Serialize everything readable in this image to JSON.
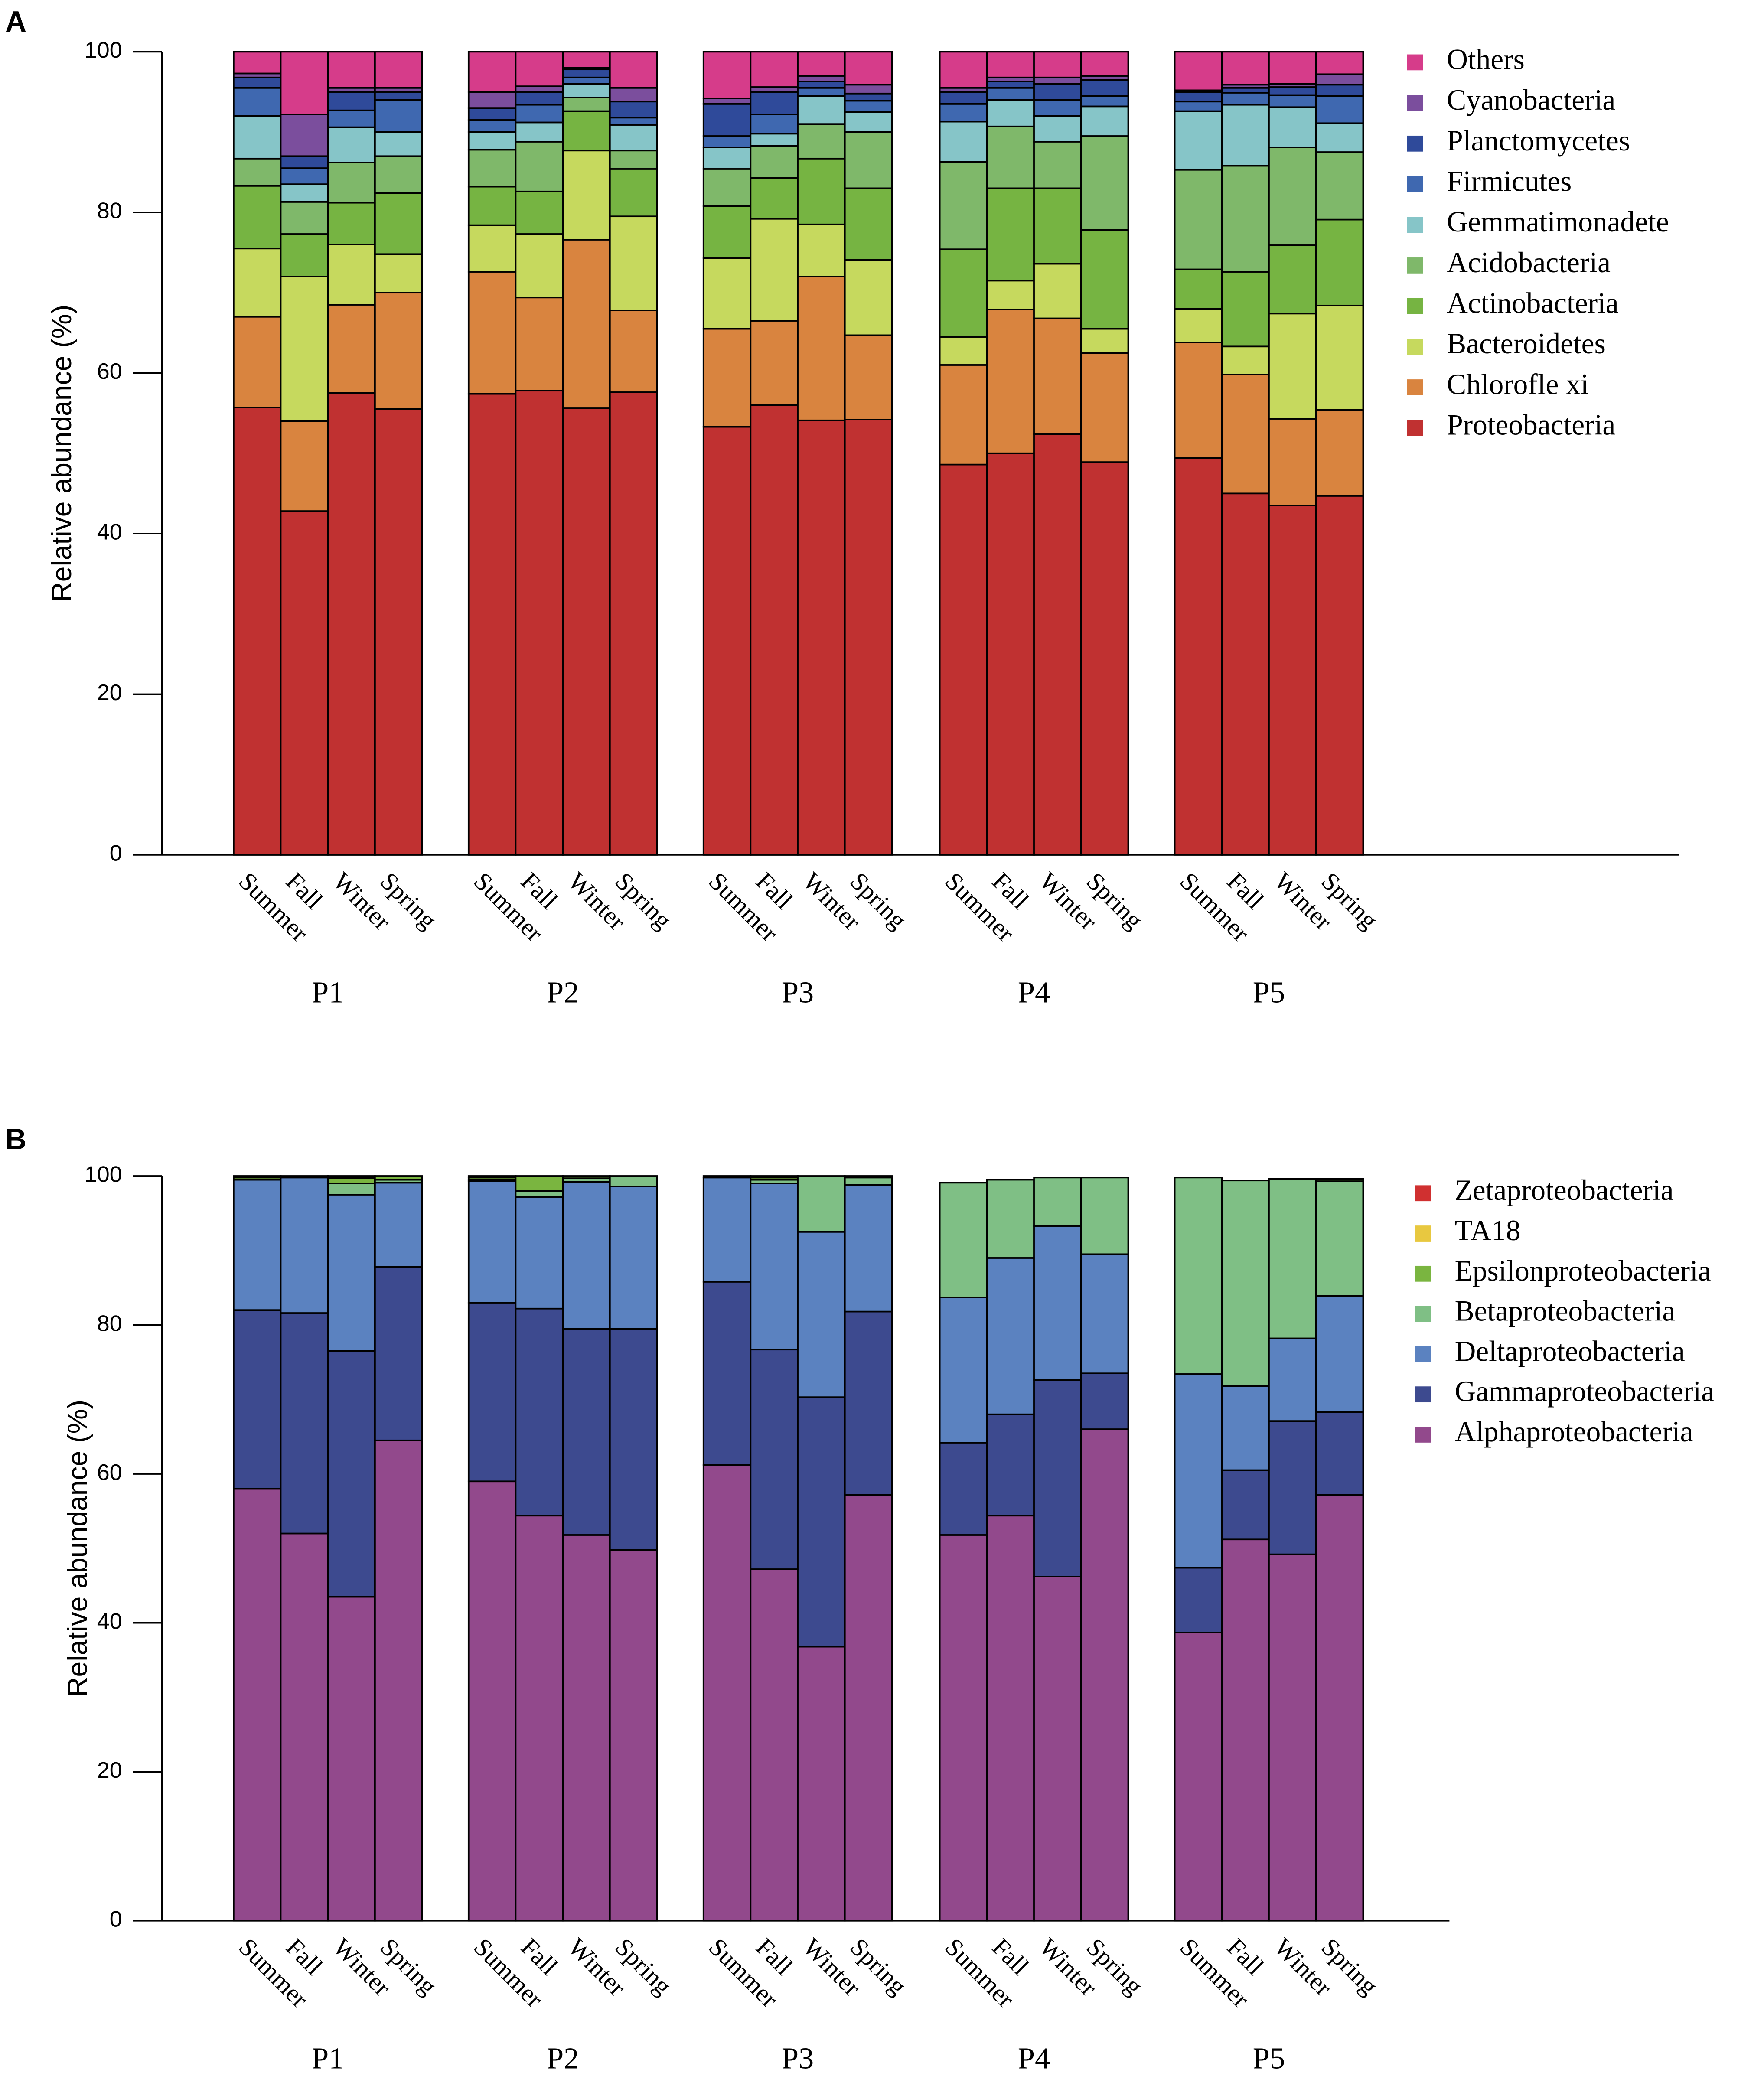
{
  "chart_data": [
    {
      "type": "bar",
      "stacked": true,
      "panel_label": "A",
      "ylabel": "Relative abundance (%)",
      "categories": [
        "Summer",
        "Fall",
        "Winter",
        "Spring",
        "Summer",
        "Fall",
        "Winter",
        "Spring",
        "Summer",
        "Fall",
        "Winter",
        "Spring",
        "Summer",
        "Fall",
        "Winter",
        "Spring",
        "Summer",
        "Fall",
        "Winter",
        "Spring"
      ],
      "groups": [
        "P1",
        "P2",
        "P3",
        "P4",
        "P5"
      ],
      "ylim": [
        0,
        100
      ],
      "yticks": [
        0,
        20,
        40,
        60,
        80,
        100
      ],
      "series": [
        {
          "name": "Proteobacteria",
          "color": "#c03131",
          "values": [
            55.7,
            42.8,
            57.5,
            55.5,
            57.4,
            57.8,
            55.6,
            57.6,
            53.3,
            56,
            54.1,
            54.2,
            48.6,
            50,
            52.4,
            48.9,
            49.4,
            45,
            43.5,
            44.7
          ]
        },
        {
          "name": "Chlorofle xi",
          "color": "#d9843f",
          "values": [
            11.3,
            11.2,
            11,
            14.5,
            15.2,
            11.6,
            21,
            10.2,
            12.2,
            10.5,
            17.9,
            10.5,
            12.4,
            17.9,
            14.4,
            13.6,
            14.4,
            14.8,
            10.8,
            10.7
          ]
        },
        {
          "name": "Bacteroidetes",
          "color": "#c6d95e",
          "values": [
            8.5,
            18,
            7.5,
            4.8,
            5.8,
            7.9,
            11.1,
            11.7,
            8.8,
            12.7,
            6.5,
            9.4,
            3.5,
            3.6,
            6.8,
            3,
            4.2,
            3.5,
            13.1,
            13
          ]
        },
        {
          "name": "Actinobacteria",
          "color": "#76b442",
          "values": [
            7.8,
            5.3,
            5.2,
            7.6,
            4.8,
            5.3,
            4.9,
            5.9,
            6.5,
            5.1,
            8.2,
            8.9,
            10.9,
            11.5,
            9.4,
            12.3,
            4.9,
            9.3,
            8.5,
            10.7
          ]
        },
        {
          "name": "Acidobacteria",
          "color": "#7fb86a",
          "values": [
            3.4,
            4,
            5,
            4.6,
            4.6,
            6.2,
            1.7,
            2.3,
            4.6,
            4,
            4.3,
            7,
            10.9,
            7.7,
            5.8,
            11.7,
            12.4,
            13.2,
            12.2,
            8.4
          ]
        },
        {
          "name": "Gemmatimonadete",
          "color": "#86c5c8",
          "values": [
            5.3,
            2.2,
            4.4,
            3,
            2.2,
            2.4,
            1.7,
            3.2,
            2.7,
            1.5,
            3.5,
            2.5,
            5,
            3.3,
            3.2,
            3.7,
            7.3,
            7.6,
            5,
            3.6
          ]
        },
        {
          "name": "Firmicutes",
          "color": "#3f68b0",
          "values": [
            3.5,
            2,
            2.1,
            4,
            1.5,
            2.2,
            0.8,
            0.9,
            1.4,
            2.4,
            1,
            1.4,
            2.2,
            1.5,
            2,
            1.3,
            1.2,
            1.5,
            1.5,
            3.4
          ]
        },
        {
          "name": "Planctomycetes",
          "color": "#2f4a9a",
          "values": [
            1.3,
            1.5,
            2.3,
            1,
            1.5,
            1.6,
            1,
            2,
            4,
            2.8,
            0.8,
            0.9,
            1.5,
            0.8,
            2,
            2,
            1.2,
            0.6,
            1,
            1.4
          ]
        },
        {
          "name": "Cyanobacteria",
          "color": "#7b4e9d",
          "values": [
            0.5,
            5.2,
            0.5,
            0.5,
            2,
            0.7,
            0.2,
            1.7,
            0.7,
            0.6,
            0.7,
            1.1,
            0.5,
            0.5,
            0.8,
            0.5,
            0.2,
            0.4,
            0.4,
            1.3
          ]
        },
        {
          "name": "Others",
          "color": "#d63c8a",
          "values": [
            2.7,
            7.8,
            4.5,
            4.5,
            5,
            4.3,
            2,
            4.5,
            5.8,
            4.4,
            3,
            4.1,
            4.5,
            3.2,
            3.2,
            3,
            4.8,
            4.1,
            4,
            2.8
          ]
        }
      ]
    },
    {
      "type": "bar",
      "stacked": true,
      "panel_label": "B",
      "ylabel": "Relative abundance (%)",
      "categories": [
        "Summer",
        "Fall",
        "Winter",
        "Spring",
        "Summer",
        "Fall",
        "Winter",
        "Spring",
        "Summer",
        "Fall",
        "Winter",
        "Spring",
        "Summer",
        "Fall",
        "Winter",
        "Spring",
        "Summer",
        "Fall",
        "Winter",
        "Spring"
      ],
      "groups": [
        "P1",
        "P2",
        "P3",
        "P4",
        "P5"
      ],
      "ylim": [
        0,
        100
      ],
      "yticks": [
        0,
        20,
        40,
        60,
        80,
        100
      ],
      "series": [
        {
          "name": "Alphaproteobacteria",
          "color": "#92498c",
          "values": [
            58,
            52,
            43.5,
            64.5,
            59,
            54.4,
            51.8,
            49.8,
            61.2,
            47.2,
            36.8,
            57.2,
            51.8,
            54.4,
            46.2,
            66,
            38.7,
            51.2,
            49.2,
            57.2
          ]
        },
        {
          "name": "Gammaproteobacteria",
          "color": "#3d4a8f",
          "values": [
            24,
            29.6,
            33,
            23.3,
            24,
            27.8,
            27.7,
            29.7,
            24.6,
            29.5,
            33.5,
            24.6,
            12.4,
            13.6,
            26.4,
            7.5,
            8.7,
            9.3,
            17.9,
            11.1
          ]
        },
        {
          "name": "Deltaproteobacteria",
          "color": "#5b82c0",
          "values": [
            17.5,
            18.2,
            21,
            11.3,
            16.3,
            15,
            19.7,
            19.1,
            14,
            22.3,
            22.2,
            17,
            19.5,
            21,
            20.7,
            16,
            26,
            11.3,
            11.1,
            15.6
          ]
        },
        {
          "name": "Betaproteobacteria",
          "color": "#7fbf85",
          "values": [
            0,
            0,
            1.5,
            0.4,
            0.2,
            0.8,
            0.5,
            1.4,
            0,
            0.5,
            7.5,
            1,
            15.4,
            10.5,
            6.5,
            10.3,
            26.4,
            27.6,
            21.4,
            15.4
          ]
        },
        {
          "name": "Epsilonproteobacteria",
          "color": "#7ab540",
          "values": [
            0.3,
            0.1,
            0.7,
            0.5,
            0.3,
            2,
            0.3,
            0,
            0.2,
            0.3,
            0,
            0,
            0,
            0,
            0,
            0,
            0,
            0,
            0,
            0.3
          ]
        },
        {
          "name": "TA18",
          "color": "#e8c840",
          "values": [
            0.2,
            0.1,
            0.2,
            0,
            0.2,
            0,
            0,
            0,
            0,
            0.2,
            0,
            0.2,
            0,
            0,
            0,
            0,
            0,
            0,
            0,
            0
          ]
        },
        {
          "name": "Zetaproteobacteria",
          "color": "#d03030",
          "values": [
            0,
            0,
            0.1,
            0,
            0,
            0,
            0,
            0,
            0,
            0,
            0,
            0,
            0,
            0,
            0,
            0,
            0,
            0,
            0,
            0
          ]
        }
      ]
    }
  ]
}
